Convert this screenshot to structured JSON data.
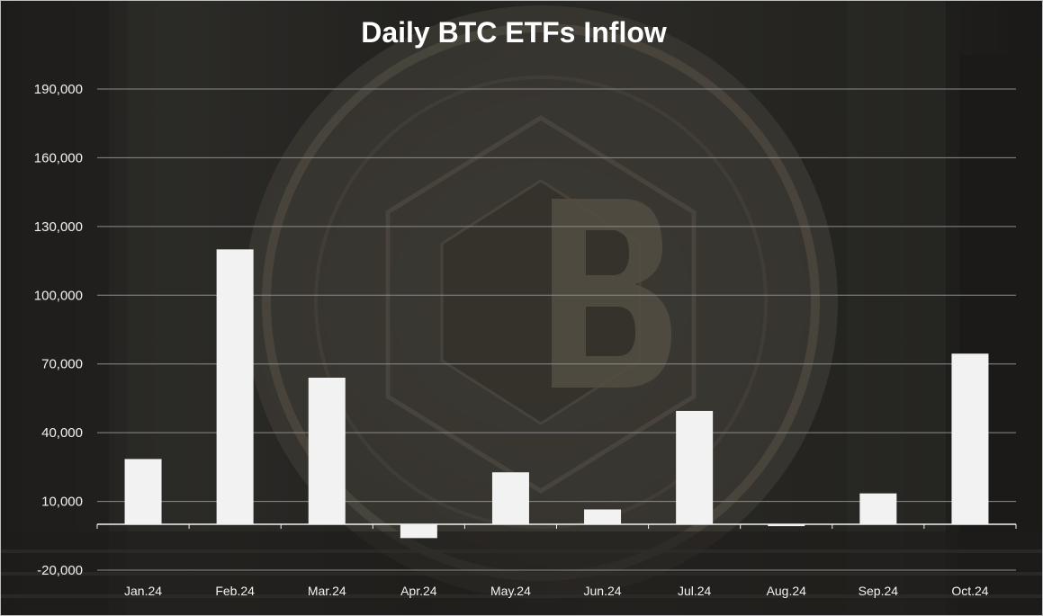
{
  "chart_data": {
    "type": "bar",
    "title": "Daily BTC ETFs Inflow",
    "xlabel": "",
    "ylabel": "",
    "categories": [
      "Jan.24",
      "Feb.24",
      "Mar.24",
      "Apr.24",
      "May.24",
      "Jun.24",
      "Jul.24",
      "Aug.24",
      "Sep.24",
      "Oct.24"
    ],
    "values": [
      28500,
      120000,
      64000,
      -6000,
      22700,
      6500,
      49500,
      -800,
      13500,
      74500
    ],
    "ylim": [
      -20000,
      190000
    ],
    "yticks": [
      -20000,
      10000,
      40000,
      70000,
      100000,
      130000,
      160000,
      190000
    ],
    "ytick_labels": [
      "-20,000",
      "10,000",
      "40,000",
      "70,000",
      "100,000",
      "130,000",
      "160,000",
      "190,000"
    ],
    "grid": true,
    "legend": "none",
    "colors": {
      "bar": "#f2f2f2",
      "grid": "#8c8c8c",
      "axis": "#f2f2f2",
      "text": "#f2f2f2",
      "background": "#26241f"
    }
  }
}
